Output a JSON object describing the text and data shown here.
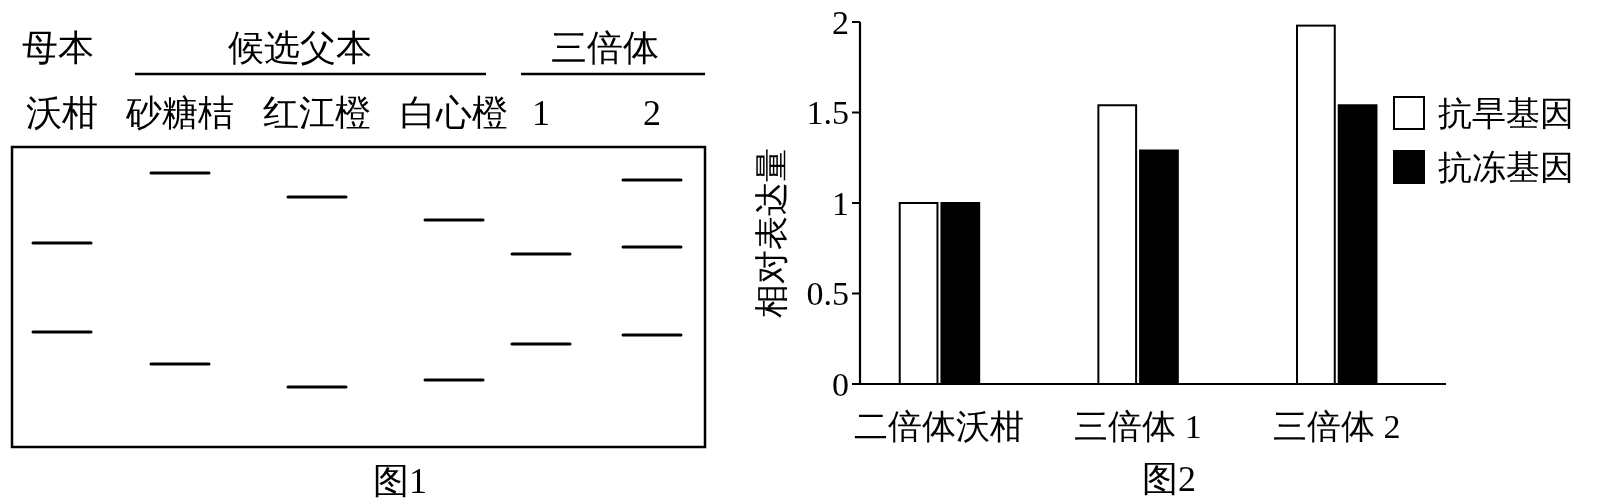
{
  "chart_data": [
    {
      "type": "other",
      "categories": [
        "沃柑",
        "砂糖桔",
        "红江橙",
        "白心橙",
        "1",
        "2"
      ],
      "annotations": [
        "母本",
        "候选父本",
        "三倍体",
        "图1"
      ]
    },
    {
      "type": "bar",
      "categories": [
        "二倍体沃柑",
        "三倍体 1",
        "三倍体 2"
      ],
      "series": [
        {
          "name": "抗旱基因",
          "color": "#ffffff",
          "values": [
            1.0,
            1.54,
            1.98
          ]
        },
        {
          "name": "抗冻基因",
          "color": "#000000",
          "values": [
            1.0,
            1.29,
            1.54
          ]
        }
      ],
      "ylabel": "相对表达量",
      "ylim": [
        0,
        2
      ],
      "yticks": [
        0,
        0.5,
        1,
        1.5,
        2
      ],
      "legend": "top right",
      "annotations": [
        "图2"
      ]
    }
  ]
}
